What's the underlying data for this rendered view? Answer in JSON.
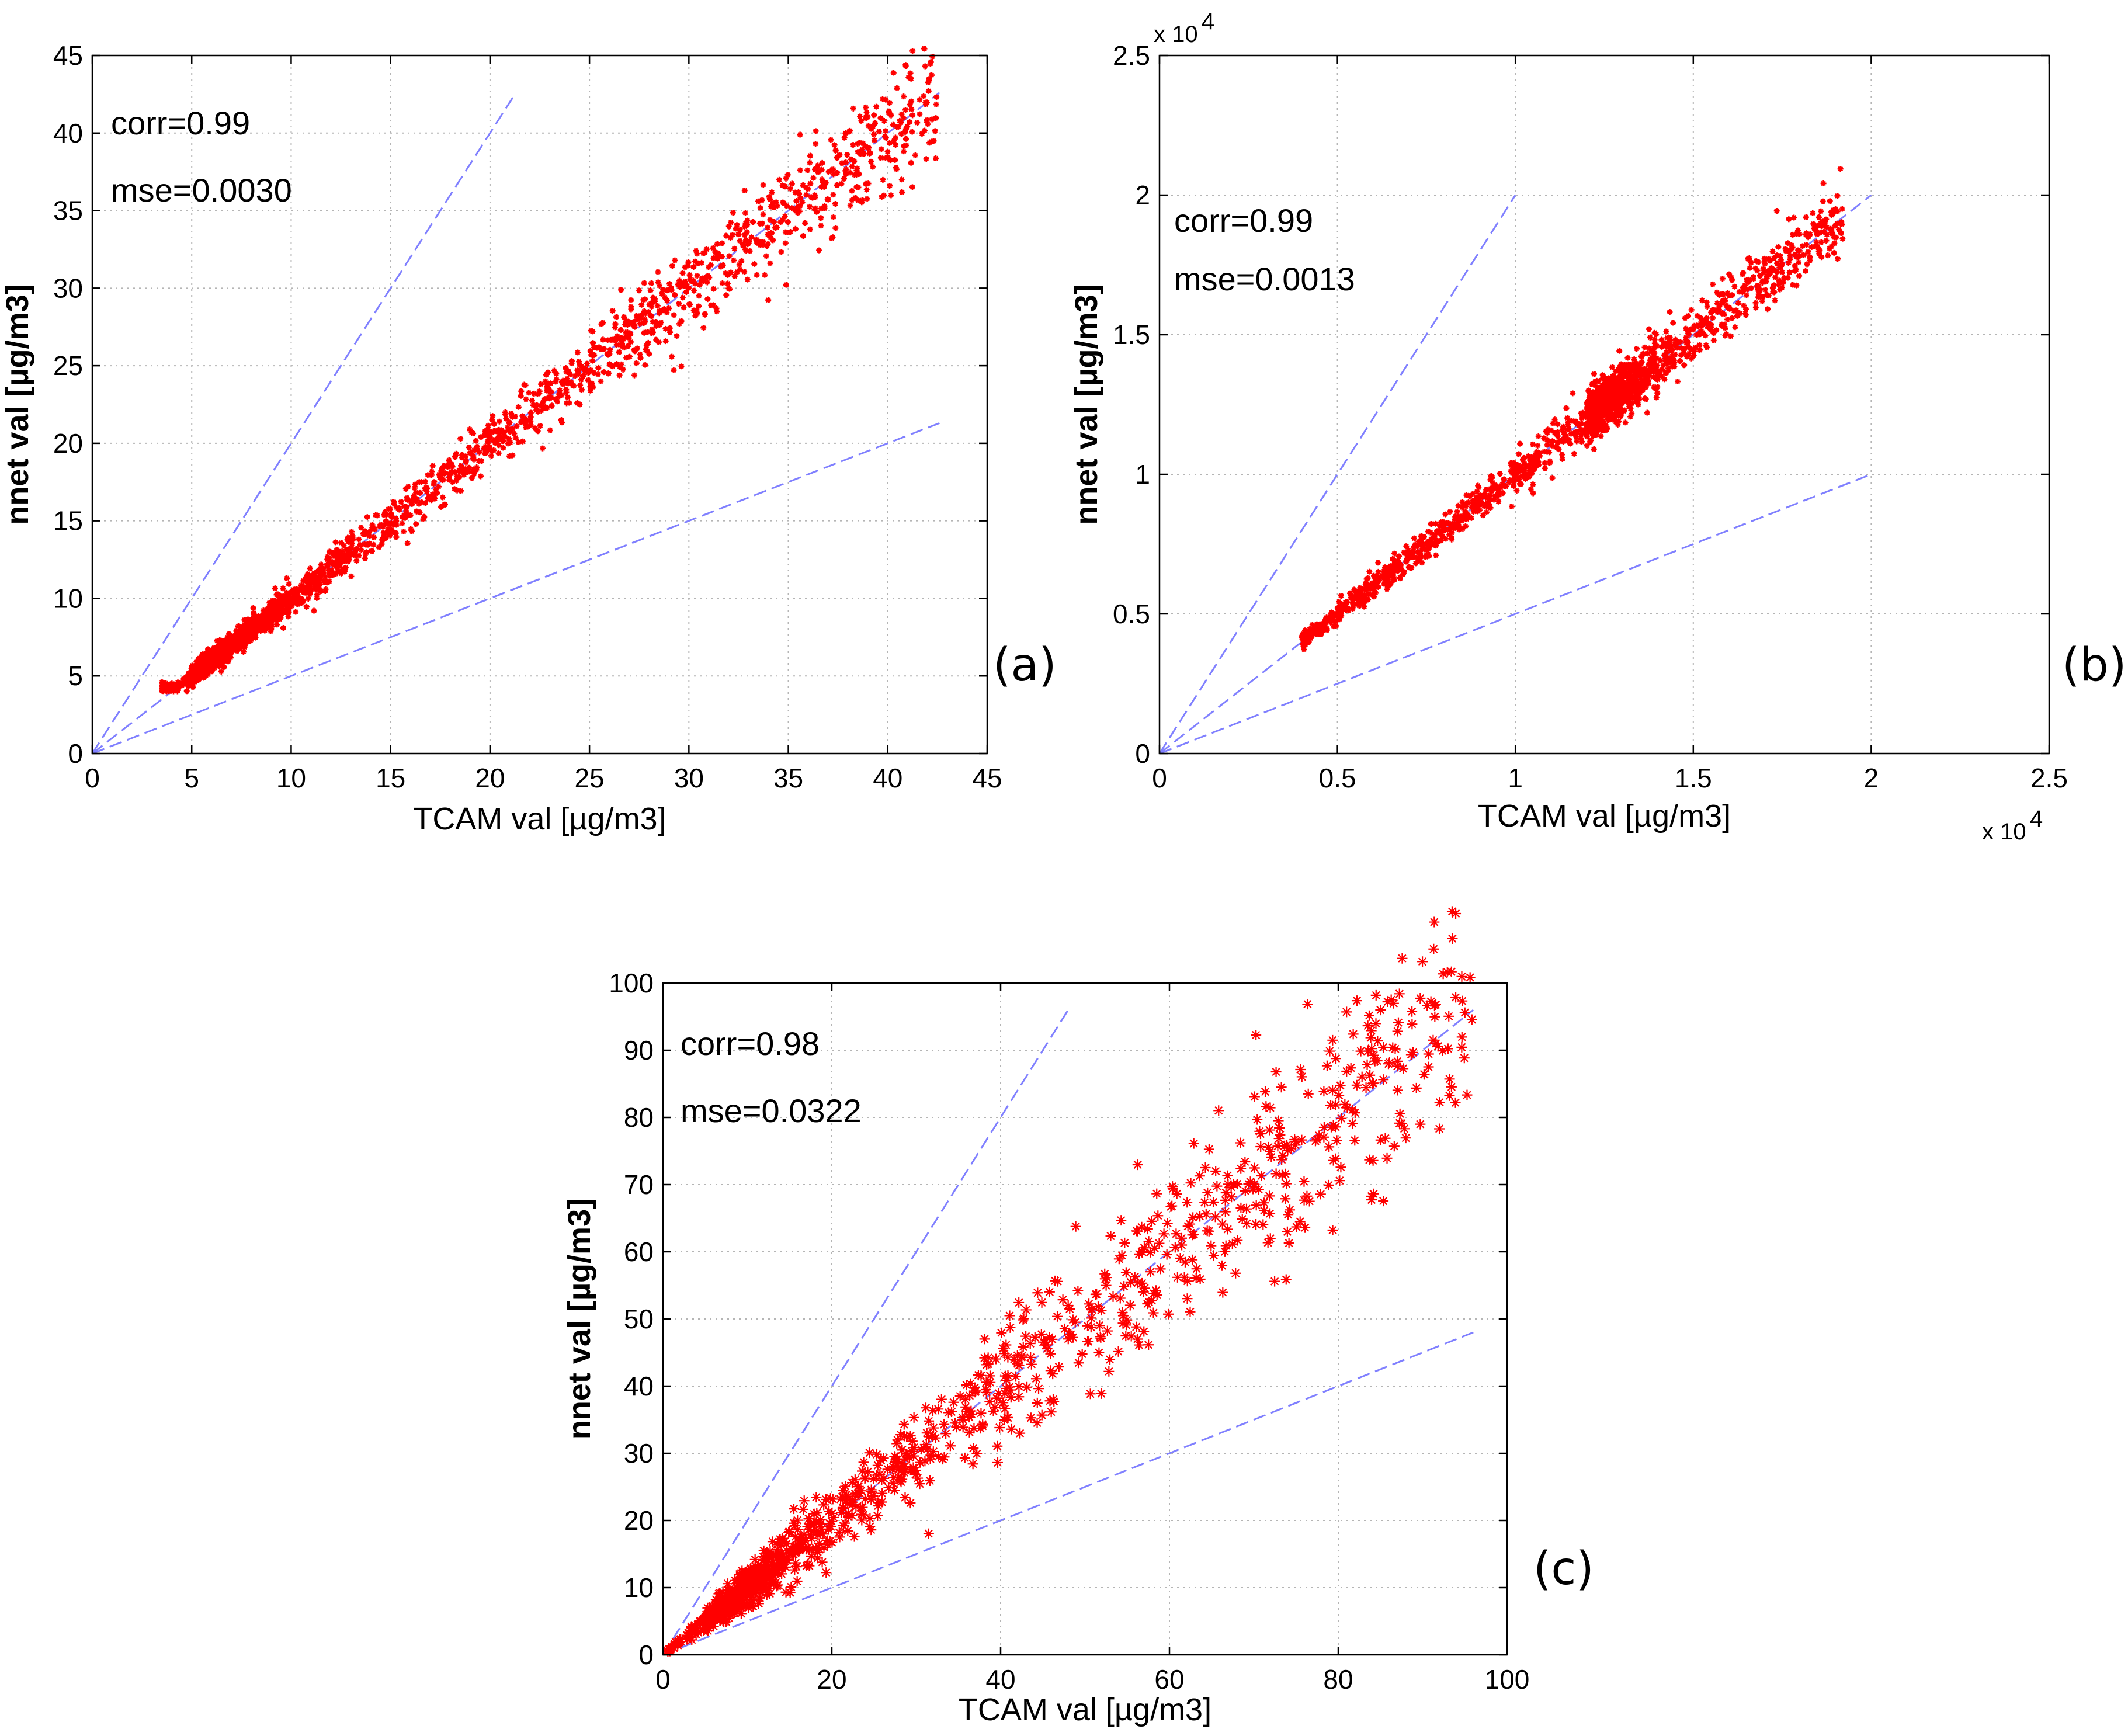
{
  "chart_data": [
    {
      "id": "a",
      "type": "scatter",
      "panel_label": "(a)",
      "xlabel": "TCAM val [µg/m3]",
      "ylabel": "nnet val [µg/m3]",
      "xlim": [
        0,
        45
      ],
      "ylim": [
        0,
        45
      ],
      "xticks": [
        0,
        5,
        10,
        15,
        20,
        25,
        30,
        35,
        40,
        45
      ],
      "yticks": [
        0,
        5,
        10,
        15,
        20,
        25,
        30,
        35,
        40,
        45
      ],
      "xtick_labels": [
        "0",
        "5",
        "10",
        "15",
        "20",
        "25",
        "30",
        "35",
        "40",
        "45"
      ],
      "ytick_labels": [
        "0",
        "5",
        "10",
        "15",
        "20",
        "25",
        "30",
        "35",
        "40",
        "45"
      ],
      "x_multiplier": "",
      "y_multiplier": "",
      "annotations": [
        "corr=0.99",
        "mse=0.0030"
      ],
      "grid": true,
      "marker": "*",
      "point_color": "#ff0000",
      "reference_line_color": "#8080ff",
      "reference_lines": [
        {
          "name": "y=2x",
          "x": [
            0,
            21.3
          ],
          "y": [
            0,
            42.6
          ]
        },
        {
          "name": "y=x",
          "x": [
            0,
            42.6
          ],
          "y": [
            0,
            42.6
          ]
        },
        {
          "name": "y=0.5x",
          "x": [
            0,
            42.6
          ],
          "y": [
            0,
            21.3
          ]
        }
      ],
      "scatter_model": {
        "x_range": [
          3.5,
          42.5
        ],
        "density_center": 5,
        "spread": 0.045,
        "n_points": 2400,
        "marker_size": 5
      }
    },
    {
      "id": "b",
      "type": "scatter",
      "panel_label": "(b)",
      "xlabel": "TCAM val [µg/m3]",
      "ylabel": "nnet val [µg/m3]",
      "xlim": [
        0,
        25000
      ],
      "ylim": [
        0,
        25000
      ],
      "xticks": [
        0,
        5000,
        10000,
        15000,
        20000,
        25000
      ],
      "yticks": [
        0,
        5000,
        10000,
        15000,
        20000,
        25000
      ],
      "xtick_labels": [
        "0",
        "0.5",
        "1",
        "1.5",
        "2",
        "2.5"
      ],
      "ytick_labels": [
        "0",
        "0.5",
        "1",
        "1.5",
        "2",
        "2.5"
      ],
      "x_multiplier": "x 10",
      "y_multiplier": "x 10",
      "multiplier_exponent": "4",
      "annotations": [
        "corr=0.99",
        "mse=0.0013"
      ],
      "grid": true,
      "marker": "*",
      "point_color": "#ff0000",
      "reference_line_color": "#8080ff",
      "reference_lines": [
        {
          "name": "y=2x",
          "x": [
            0,
            10000
          ],
          "y": [
            0,
            20000
          ]
        },
        {
          "name": "y=x",
          "x": [
            0,
            20000
          ],
          "y": [
            0,
            20000
          ]
        },
        {
          "name": "y=0.5x",
          "x": [
            0,
            20000
          ],
          "y": [
            0,
            10000
          ]
        }
      ],
      "scatter_model": {
        "x_range": [
          4000,
          19200
        ],
        "density_center": 12000,
        "spread": 0.035,
        "n_points": 1800,
        "marker_size": 5
      }
    },
    {
      "id": "c",
      "type": "scatter",
      "panel_label": "(c)",
      "xlabel": "TCAM val [µg/m3]",
      "ylabel": "nnet val [µg/m3]",
      "xlim": [
        0,
        100
      ],
      "ylim": [
        0,
        100
      ],
      "xticks": [
        0,
        20,
        40,
        60,
        80,
        100
      ],
      "yticks": [
        0,
        10,
        20,
        30,
        40,
        50,
        60,
        70,
        80,
        90,
        100
      ],
      "xtick_labels": [
        "0",
        "20",
        "40",
        "60",
        "80",
        "100"
      ],
      "ytick_labels": [
        "0",
        "10",
        "20",
        "30",
        "40",
        "50",
        "60",
        "70",
        "80",
        "90",
        "100"
      ],
      "x_multiplier": "",
      "y_multiplier": "",
      "annotations": [
        "corr=0.98",
        "mse=0.0322"
      ],
      "grid": true,
      "marker": "*",
      "point_color": "#ff0000",
      "reference_line_color": "#8080ff",
      "reference_lines": [
        {
          "name": "y=2x",
          "x": [
            0,
            48
          ],
          "y": [
            0,
            96
          ]
        },
        {
          "name": "y=x",
          "x": [
            0,
            96
          ],
          "y": [
            0,
            96
          ]
        },
        {
          "name": "y=0.5x",
          "x": [
            0,
            96
          ],
          "y": [
            0,
            48
          ]
        }
      ],
      "scatter_model": {
        "x_range": [
          0.5,
          96
        ],
        "density_center": 5,
        "spread": 0.12,
        "n_points": 1300,
        "marker_size": 9
      }
    }
  ]
}
